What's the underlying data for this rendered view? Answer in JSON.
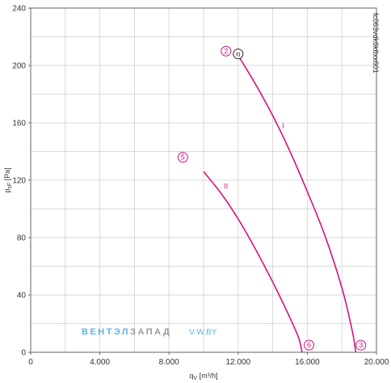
{
  "chart_data": {
    "type": "line",
    "xlabel": "q",
    "xlabel_sub": "V",
    "xlabel_unit": " [m³/h]",
    "ylabel": "p",
    "ylabel_sub": "sF",
    "ylabel_unit": " [Pa]",
    "xlim": [
      0,
      20000
    ],
    "ylim": [
      0,
      240
    ],
    "x_ticks": [
      0,
      4000,
      8000,
      12000,
      16000,
      20000
    ],
    "x_tick_labels": [
      "0",
      "4.000",
      "8.000",
      "12.000",
      "16.000",
      "20.000"
    ],
    "y_ticks": [
      0,
      40,
      80,
      120,
      160,
      200,
      240
    ],
    "y_tick_labels": [
      "0",
      "40",
      "80",
      "120",
      "160",
      "200",
      "240"
    ],
    "grid": true,
    "x_grid_step": 2000,
    "y_grid_step": 20,
    "series": [
      {
        "name": "I",
        "color": "#d6137a",
        "label_at": [
          14600,
          156
        ],
        "points": [
          [
            12000,
            207
          ],
          [
            13000,
            187
          ],
          [
            14000,
            165
          ],
          [
            15000,
            140
          ],
          [
            16000,
            112
          ],
          [
            17000,
            82
          ],
          [
            18000,
            45
          ],
          [
            18600,
            15
          ],
          [
            18800,
            0
          ]
        ]
      },
      {
        "name": "II",
        "color": "#d6137a",
        "label_at": [
          11300,
          114
        ],
        "points": [
          [
            10000,
            126
          ],
          [
            11000,
            111
          ],
          [
            12000,
            93
          ],
          [
            13000,
            72
          ],
          [
            14000,
            49
          ],
          [
            15000,
            24
          ],
          [
            15500,
            10
          ],
          [
            15700,
            0
          ]
        ]
      }
    ],
    "markers": [
      {
        "label": "2",
        "x": 11300,
        "y": 210,
        "style": "circle-magenta"
      },
      {
        "label": "n",
        "x": 12000,
        "y": 208,
        "style": "circle-black"
      },
      {
        "label": "5",
        "x": 8800,
        "y": 136,
        "style": "circle-magenta"
      },
      {
        "label": "6",
        "x": 16100,
        "y": 5,
        "style": "circle-magenta"
      },
      {
        "label": "3",
        "x": 19100,
        "y": 5,
        "style": "circle-magenta"
      }
    ],
    "side_code": "fc063vdk6k8xx601"
  },
  "watermark": {
    "brand_part1": "ВЕНТЭЛ",
    "brand_part2": "ЗАПАД",
    "site": "V-W.BY",
    "color_blue": "#5bb6e8",
    "color_gray": "#9a9a9a"
  },
  "colors": {
    "grid": "#d9d9d9",
    "axis": "#666666",
    "curve": "#d6137a",
    "marker_black": "#222222"
  }
}
